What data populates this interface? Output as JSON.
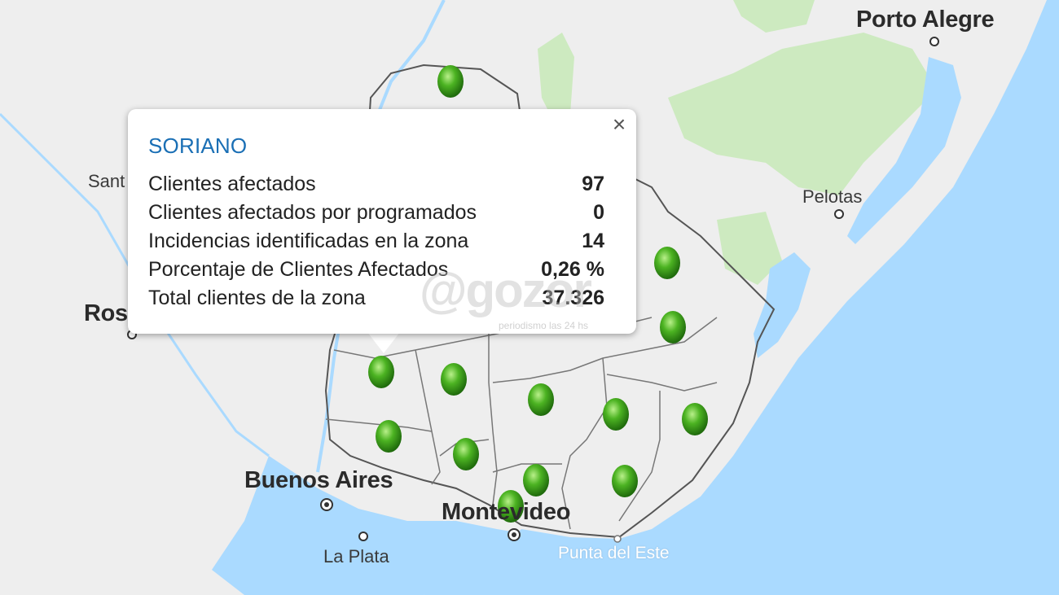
{
  "popup": {
    "title": "SORIANO",
    "close_icon": "close-icon",
    "stats": [
      {
        "label": "Clientes afectados",
        "value": "97"
      },
      {
        "label": "Clientes afectados por programados",
        "value": "0"
      },
      {
        "label": "Incidencias identificadas en la zona",
        "value": "14"
      },
      {
        "label": "Porcentaje de Clientes Afectados",
        "value": "0,26 %"
      },
      {
        "label": "Total clientes de la zona",
        "value": "37.326"
      }
    ]
  },
  "map": {
    "cities": {
      "porto_alegre": "Porto Alegre",
      "pelotas": "Pelotas",
      "rosario": "Ros",
      "santa_fe": "Sant",
      "buenos_aires": "Buenos Aires",
      "la_plata": "La Plata",
      "montevideo": "Montevideo",
      "punta_del_este": "Punta del Este"
    },
    "marker_status": "green",
    "marker_color": "#3fa81e",
    "water_color": "#aadaff",
    "land_color": "#eeeeee",
    "forest_color": "#cdeac0"
  },
  "watermark": {
    "brand": "@gozor",
    "tagline": "periodismo las 24 hs"
  }
}
